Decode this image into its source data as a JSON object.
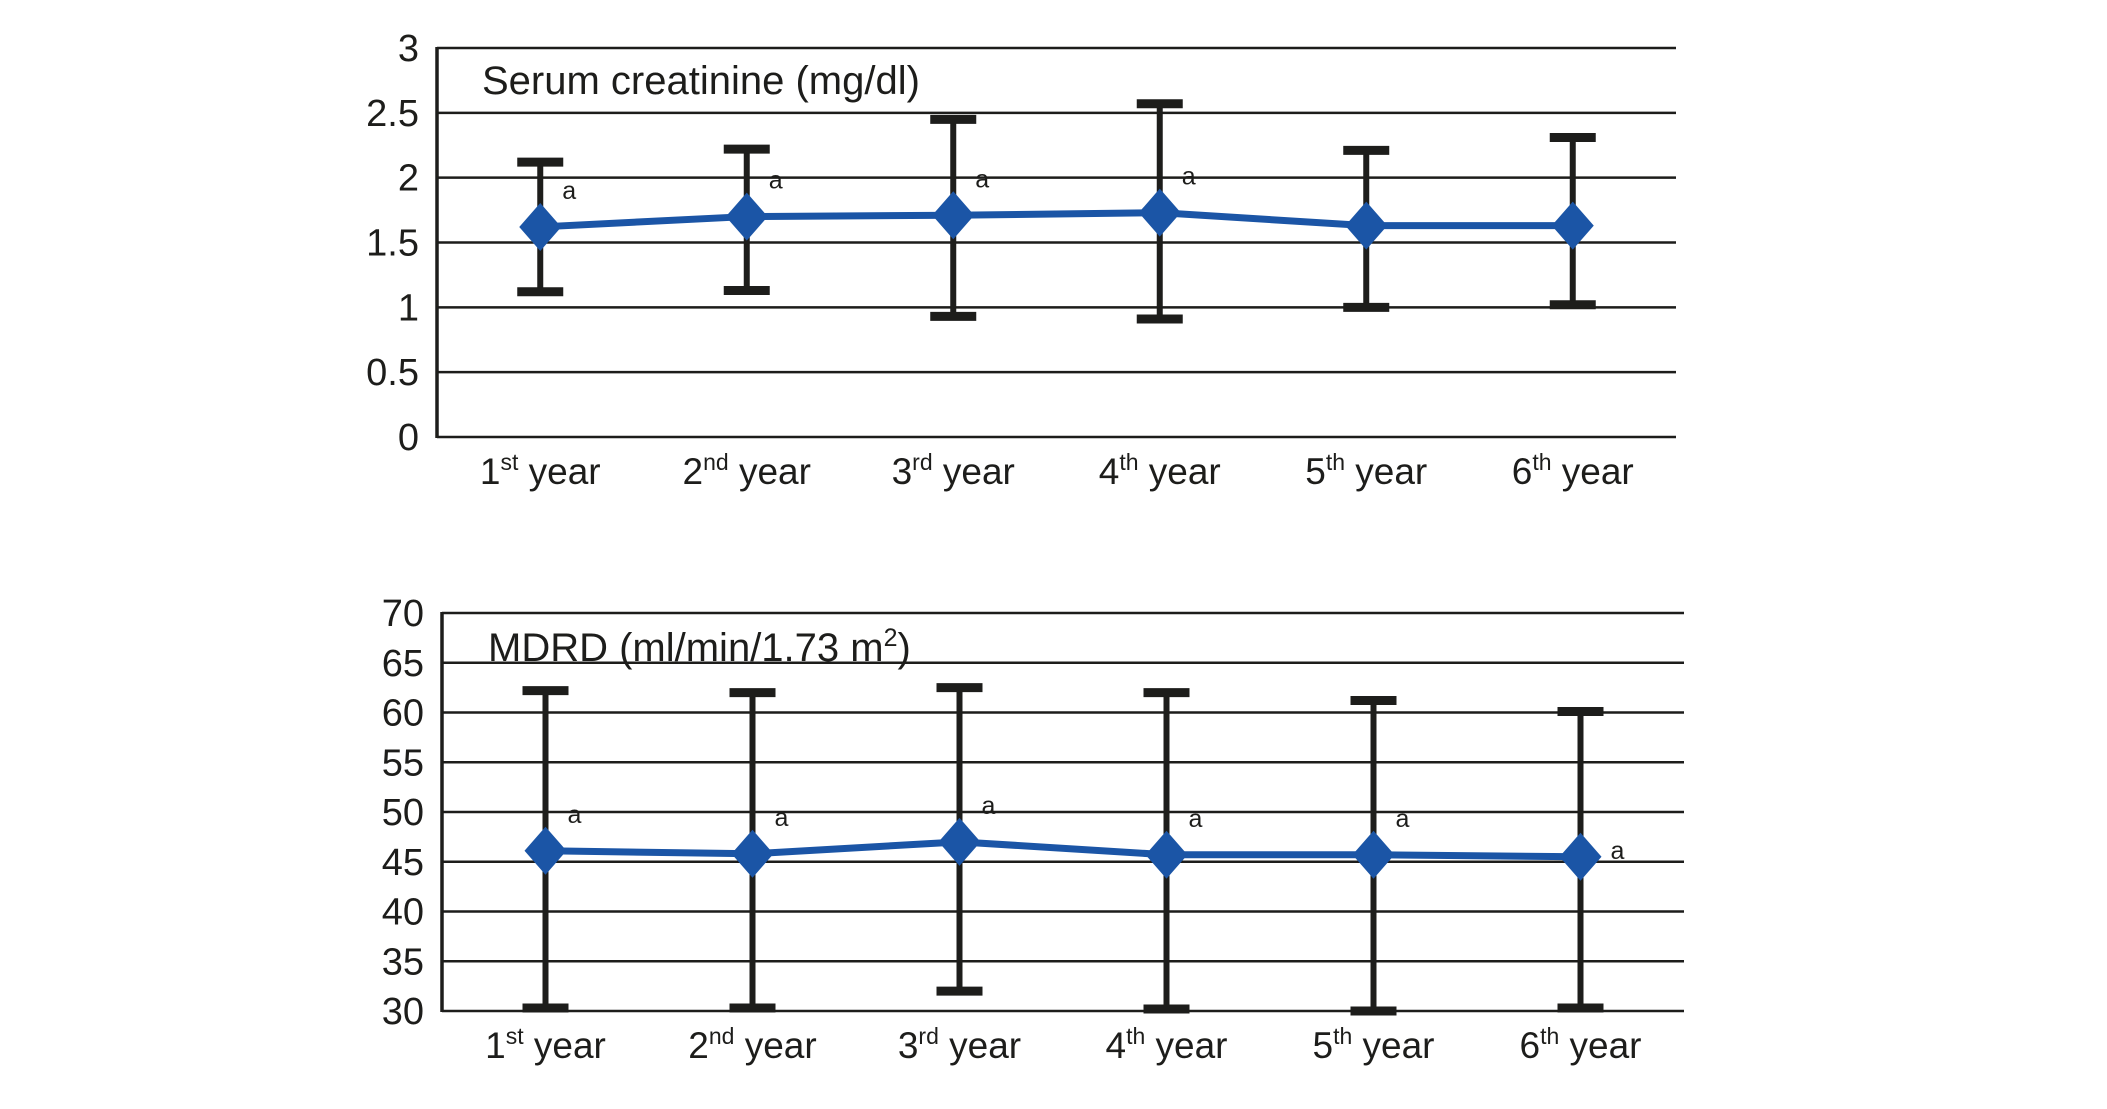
{
  "style": {
    "background": "#ffffff",
    "series_color": "#1b55a6",
    "axis_color": "#1d1d1b",
    "grid_color": "#1d1d1b",
    "text_color": "#1d1d1b"
  },
  "chart_data": [
    {
      "id": "serum-creatinine-chart",
      "type": "line",
      "title": "Serum creatinine (mg/dl)",
      "title_parts": [
        {
          "text": "Serum creatinine (mg/dl)",
          "sup": false
        }
      ],
      "categories": [
        "1st year",
        "2nd year",
        "3rd year",
        "4th year",
        "5th year",
        "6th year"
      ],
      "categories_parts": [
        {
          "base": "1",
          "sup": "st",
          "suffix": " year"
        },
        {
          "base": "2",
          "sup": "nd",
          "suffix": " year"
        },
        {
          "base": "3",
          "sup": "rd",
          "suffix": " year"
        },
        {
          "base": "4",
          "sup": "th",
          "suffix": " year"
        },
        {
          "base": "5",
          "sup": "th",
          "suffix": " year"
        },
        {
          "base": "6",
          "sup": "th",
          "suffix": " year"
        }
      ],
      "values": [
        1.62,
        1.7,
        1.71,
        1.73,
        1.63,
        1.63
      ],
      "error_upper": [
        2.12,
        2.22,
        2.45,
        2.57,
        2.21,
        2.31
      ],
      "error_lower": [
        1.12,
        1.13,
        0.93,
        0.91,
        1.0,
        1.02
      ],
      "annotations": [
        "a",
        "a",
        "a",
        "a",
        "",
        ""
      ],
      "annotation_pos": [
        "above",
        "above",
        "above",
        "above",
        "above",
        "above"
      ],
      "ylim": [
        0,
        3
      ],
      "ytick_step": 0.5,
      "y_ticks": [
        "3",
        "2.5",
        "2",
        "1.5",
        "1",
        "0.5",
        "0"
      ],
      "xlabel": "",
      "ylabel": "",
      "grid": true,
      "legend": "none",
      "marker": "diamond"
    },
    {
      "id": "mdrd-chart",
      "type": "line",
      "title": "MDRD (ml/min/1.73 m²)",
      "title_parts": [
        {
          "text": "MDRD (ml/min/1.73 m",
          "sup": false
        },
        {
          "text": "2",
          "sup": true
        },
        {
          "text": ")",
          "sup": false
        }
      ],
      "categories": [
        "1st year",
        "2nd year",
        "3rd year",
        "4th year",
        "5th year",
        "6th year"
      ],
      "categories_parts": [
        {
          "base": "1",
          "sup": "st",
          "suffix": " year"
        },
        {
          "base": "2",
          "sup": "nd",
          "suffix": " year"
        },
        {
          "base": "3",
          "sup": "rd",
          "suffix": " year"
        },
        {
          "base": "4",
          "sup": "th",
          "suffix": " year"
        },
        {
          "base": "5",
          "sup": "th",
          "suffix": " year"
        },
        {
          "base": "6",
          "sup": "th",
          "suffix": " year"
        }
      ],
      "values": [
        46.1,
        45.8,
        47.0,
        45.7,
        45.7,
        45.5
      ],
      "error_upper": [
        62.2,
        62.0,
        62.5,
        62.0,
        61.2,
        60.1
      ],
      "error_lower": [
        30.3,
        30.3,
        32.0,
        30.2,
        30.0,
        30.3
      ],
      "annotations": [
        "a",
        "a",
        "a",
        "a",
        "a",
        "a"
      ],
      "annotation_pos": [
        "above",
        "above",
        "above",
        "above",
        "above",
        "right"
      ],
      "ylim": [
        30,
        70
      ],
      "ytick_step": 5,
      "y_ticks": [
        "70",
        "65",
        "60",
        "55",
        "50",
        "45",
        "40",
        "35",
        "30"
      ],
      "xlabel": "",
      "ylabel": "",
      "grid": true,
      "legend": "none",
      "marker": "diamond"
    }
  ]
}
